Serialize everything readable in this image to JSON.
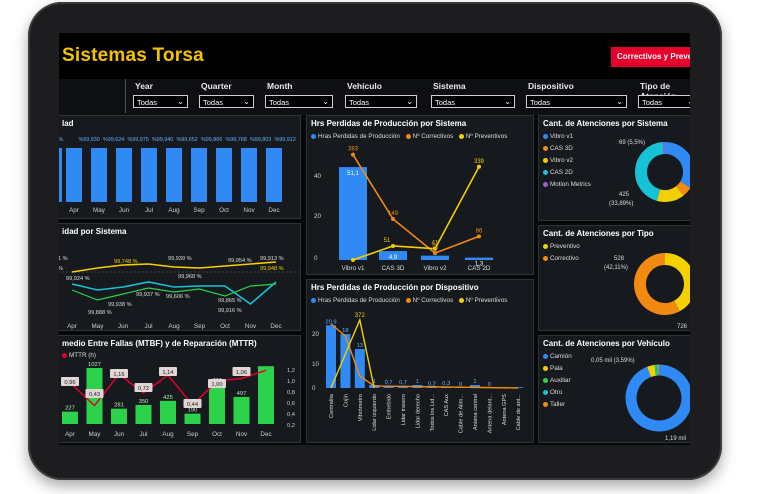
{
  "colors": {
    "title": "#f5c400",
    "blue": "#2f8af5",
    "orange": "#f28a12",
    "yellow": "#f5d000",
    "cyan": "#16c3d6",
    "green": "#2bd24a",
    "red": "#e4002b"
  },
  "header": {
    "title": "Sistemas Torsa",
    "report_button": "Correctivos y Preventivos"
  },
  "filters": [
    {
      "label": "Year",
      "value": "Todas"
    },
    {
      "label": "Quarter",
      "value": "Todas"
    },
    {
      "label": "Month",
      "value": "Todas"
    },
    {
      "label": "Vehículo",
      "value": "Todas"
    },
    {
      "label": "Sistema",
      "value": "Todas"
    },
    {
      "label": "Dispositivo",
      "value": "Todas"
    },
    {
      "label": "Tipo de Atención",
      "value": "Todas"
    }
  ],
  "availability": {
    "title_fragment": "lad",
    "months": [
      "Apr",
      "May",
      "Jun",
      "Jul",
      "Aug",
      "Sep",
      "Oct",
      "Nov",
      "Dec"
    ],
    "labels": [
      "5 %",
      "%99,930",
      "%99,624",
      "%99,975",
      "%99,940",
      "%99,652",
      "%99,866",
      "%99,768",
      "%99,803",
      "%99,912"
    ],
    "values": [
      99.624,
      99.975,
      99.94,
      99.652,
      99.866,
      99.768,
      99.803,
      99.912,
      99.93
    ]
  },
  "availability_system": {
    "title": "idad por Sistema",
    "months": [
      "Apr",
      "May",
      "Jun",
      "Jul",
      "Aug",
      "Sep",
      "Oct",
      "Nov",
      "Dec"
    ],
    "labels": [
      "1 %",
      "%",
      "99,924 %",
      "99,748 %",
      "99,938 %",
      "99,939 %",
      "99,968 %",
      "99,954 %",
      "99,865 %",
      "99,913 %",
      "99,948 %",
      "99,888 %",
      "99,937 %",
      "99,606 %",
      "99,916 %"
    ]
  },
  "mtbf": {
    "title": "medio Entre Fallas (MTBF) y de Reparación (MTTR)",
    "legend": "MTTR (h)",
    "months": [
      "Apr",
      "May",
      "Jun",
      "Jul",
      "Aug",
      "Sep",
      "Oct",
      "Nov",
      "Dec"
    ],
    "mtbf_values": [
      227,
      1027,
      281,
      350,
      425,
      190,
      733,
      497,
      1060
    ],
    "mtbf_labels": [
      "227",
      "1027",
      "281",
      "350",
      "425",
      "190",
      "733",
      "497"
    ],
    "mttr_labels": [
      "0,96",
      "0,43",
      "1,16",
      "0,72",
      "1,14",
      "0,44",
      "1,00",
      "1,06"
    ],
    "mttr_values": [
      0.96,
      0.43,
      1.16,
      0.72,
      1.14,
      0.44,
      1.0,
      1.06,
      1.25
    ],
    "y_right": [
      "1,2",
      "1,0",
      "0,8",
      "0,6",
      "0,4",
      "0,2"
    ]
  },
  "lost_hours_system": {
    "title": "Hrs Perdidas de Producción por Sistema",
    "legend": [
      "Hras Perdidas de Producción",
      "Nº Correctivos",
      "Nº Preventivos"
    ],
    "categories": [
      "Vibro v1",
      "CAS 3D",
      "Vibro v2",
      "CAS 2D"
    ],
    "hours": [
      51.1,
      4.9,
      2.4,
      1.3
    ],
    "hour_labels": [
      "51,1",
      "4,9",
      "",
      "1,3"
    ],
    "correctivos": [
      383,
      149,
      25,
      86
    ],
    "preventivos": [
      0,
      51,
      41,
      339
    ],
    "corr_labels": [
      "383",
      "149",
      "25",
      "86"
    ],
    "prev_labels": [
      "",
      "51",
      "41",
      "339"
    ],
    "y_ticks": [
      "40",
      "20",
      "0"
    ]
  },
  "lost_hours_device": {
    "title": "Hrs Perdidas de Producción por Dispositivo",
    "legend": [
      "Hras Perdidas de Producción",
      "Nº Correctivos",
      "Nº Preventivos"
    ],
    "categories": [
      "Centralita",
      "Cojín",
      "Vibrómetro",
      "Lidar izquierdo",
      "Embebido",
      "Lidar trasero",
      "Lidar derecho",
      "Todos los Lid...",
      "CAS Aux",
      "Cable de Alim...",
      "Antena central",
      "Antena delant...",
      "Antena GPS",
      "Cable de ant..."
    ],
    "hours": [
      20.9,
      18.0,
      13.0,
      1.0,
      0.7,
      0.7,
      1.0,
      0.2,
      0.3,
      0.0,
      1.0,
      0.0,
      0.0,
      0.0
    ],
    "labels": [
      "20,9",
      "18",
      "13",
      "1",
      "0,7",
      "0,7",
      "1",
      "0,2",
      "0,3",
      "0",
      "1",
      "0",
      "",
      ""
    ],
    "preventivos_top": "372",
    "y_ticks": [
      "20",
      "10",
      "0"
    ]
  },
  "attentions_system": {
    "title": "Cant. de Atenciones por Sistema",
    "items": [
      {
        "name": "Vibro v1",
        "color": "#2f8af5"
      },
      {
        "name": "CAS 3D",
        "color": "#f28a12"
      },
      {
        "name": "Vibro v2",
        "color": "#f5d000"
      },
      {
        "name": "CAS 2D",
        "color": "#16c3d6"
      },
      {
        "name": "Motion Metrics",
        "color": "#a25ad7"
      }
    ],
    "slices": [
      33.89,
      5.5,
      15.0,
      44.6,
      1.0
    ],
    "labels": [
      "69 (5,5%)",
      "425",
      "(33,89%)"
    ]
  },
  "attentions_type": {
    "title": "Cant. de Atenciones por Tipo",
    "items": [
      {
        "name": "Preventivo",
        "color": "#f5d000"
      },
      {
        "name": "Correctivo",
        "color": "#f28a12"
      }
    ],
    "slices": [
      42.11,
      57.89
    ],
    "labels": [
      "528",
      "(42,11%)",
      "726"
    ]
  },
  "attentions_vehicle": {
    "title": "Cant. de Atenciones por Vehículo",
    "items": [
      {
        "name": "Camión",
        "color": "#2f8af5"
      },
      {
        "name": "Pala",
        "color": "#f5d000"
      },
      {
        "name": "Auxiliar",
        "color": "#2bd24a"
      },
      {
        "name": "Otro",
        "color": "#16c3d6"
      },
      {
        "name": "Taller",
        "color": "#f28a12"
      }
    ],
    "slices": [
      94.2,
      3.59,
      1.0,
      0.7,
      0.5
    ],
    "labels": [
      "0,05 mil (3,59%)",
      "1,19 mil"
    ]
  }
}
